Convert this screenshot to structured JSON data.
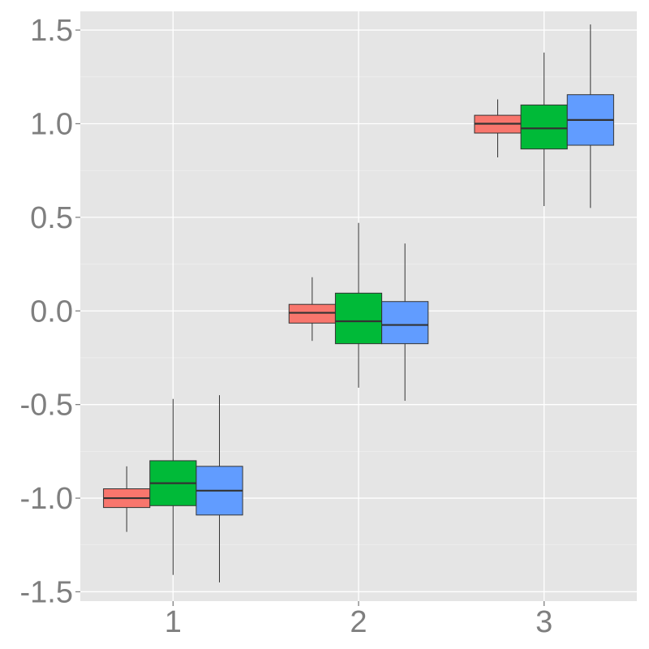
{
  "chart_data": {
    "type": "boxplot",
    "title": "",
    "xlabel": "",
    "ylabel": "",
    "categories": [
      "1",
      "2",
      "3"
    ],
    "ylim": [
      -1.55,
      1.6
    ],
    "yticks": [
      "1.5",
      "1.0",
      "0.5",
      "0.0",
      "-0.5",
      "-1.0",
      "-1.5"
    ],
    "grid": true,
    "legend": "none",
    "panel_color": "#e5e5e5",
    "grid_color": "#ffffff",
    "series": [
      {
        "color": "#f8766d",
        "boxes": [
          {
            "lower_whisker": -1.18,
            "q1": -1.05,
            "median": -1.0,
            "q3": -0.95,
            "upper_whisker": -0.83
          },
          {
            "lower_whisker": -0.16,
            "q1": -0.065,
            "median": -0.01,
            "q3": 0.035,
            "upper_whisker": 0.18
          },
          {
            "lower_whisker": 0.82,
            "q1": 0.95,
            "median": 1.0,
            "q3": 1.045,
            "upper_whisker": 1.13
          }
        ]
      },
      {
        "color": "#00ba38",
        "boxes": [
          {
            "lower_whisker": -1.41,
            "q1": -1.04,
            "median": -0.92,
            "q3": -0.8,
            "upper_whisker": -0.47
          },
          {
            "lower_whisker": -0.41,
            "q1": -0.175,
            "median": -0.055,
            "q3": 0.095,
            "upper_whisker": 0.47
          },
          {
            "lower_whisker": 0.56,
            "q1": 0.865,
            "median": 0.975,
            "q3": 1.1,
            "upper_whisker": 1.38
          }
        ]
      },
      {
        "color": "#619cff",
        "boxes": [
          {
            "lower_whisker": -1.45,
            "q1": -1.09,
            "median": -0.96,
            "q3": -0.83,
            "upper_whisker": -0.45
          },
          {
            "lower_whisker": -0.48,
            "q1": -0.175,
            "median": -0.075,
            "q3": 0.05,
            "upper_whisker": 0.36
          },
          {
            "lower_whisker": 0.55,
            "q1": 0.885,
            "median": 1.02,
            "q3": 1.155,
            "upper_whisker": 1.53
          }
        ]
      }
    ]
  }
}
